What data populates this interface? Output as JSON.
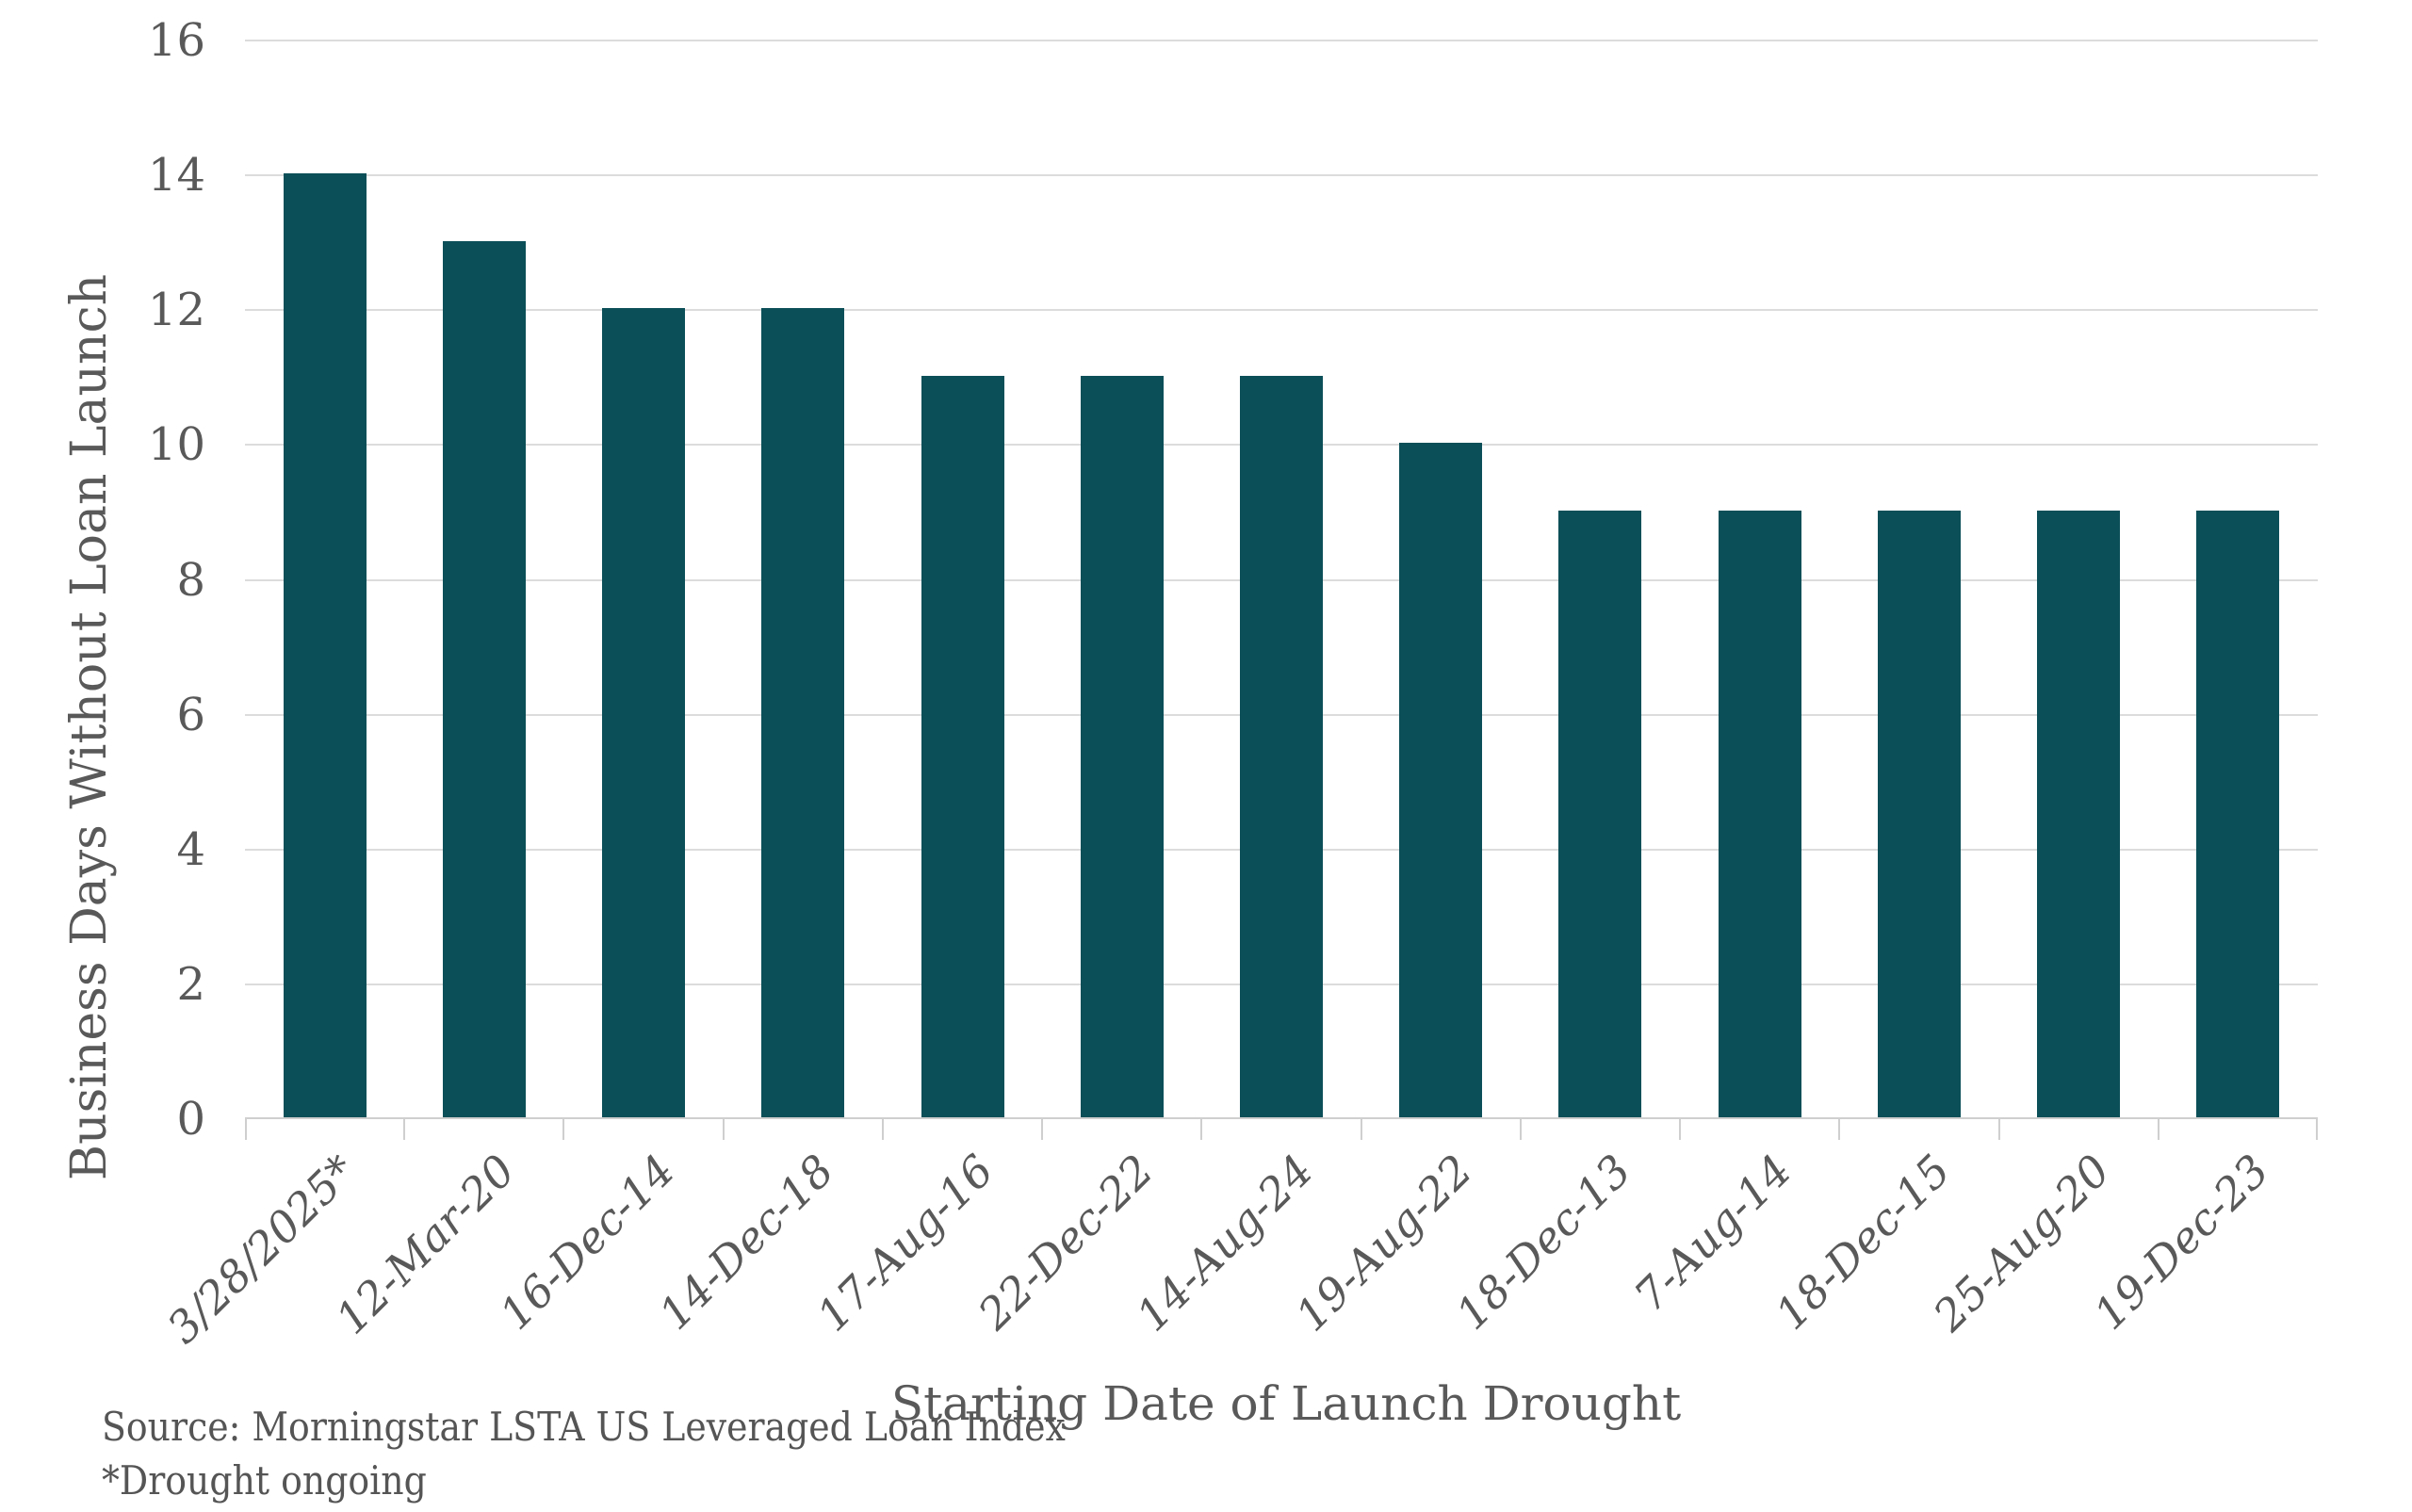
{
  "chart_data": {
    "type": "bar",
    "categories": [
      "3/28/2025*",
      "12-Mar-20",
      "16-Dec-14",
      "14-Dec-18",
      "17-Aug-16",
      "22-Dec-22",
      "14-Aug-24",
      "19-Aug-22",
      "18-Dec-13",
      "7-Aug-14",
      "18-Dec-15",
      "25-Aug-20",
      "19-Dec-23"
    ],
    "values": [
      14,
      13,
      12,
      12,
      11,
      11,
      11,
      10,
      9,
      9,
      9,
      9,
      9
    ],
    "title": "",
    "xlabel": "Starting Date of Launch Drought",
    "ylabel": "Business Days Without Loan Launch",
    "ylim": [
      0,
      16
    ],
    "yticks": [
      0,
      2,
      4,
      6,
      8,
      10,
      12,
      14,
      16
    ],
    "grid": true,
    "legend": "none",
    "bar_color": "#0b4f58",
    "gridline_color": "#dcdcdc",
    "axis_color": "#cfcfcf",
    "text_color": "#595959",
    "source_note": "Source: Morningstar LSTA US Leveraged Loan Index",
    "footnote": "*Drought ongoing"
  }
}
